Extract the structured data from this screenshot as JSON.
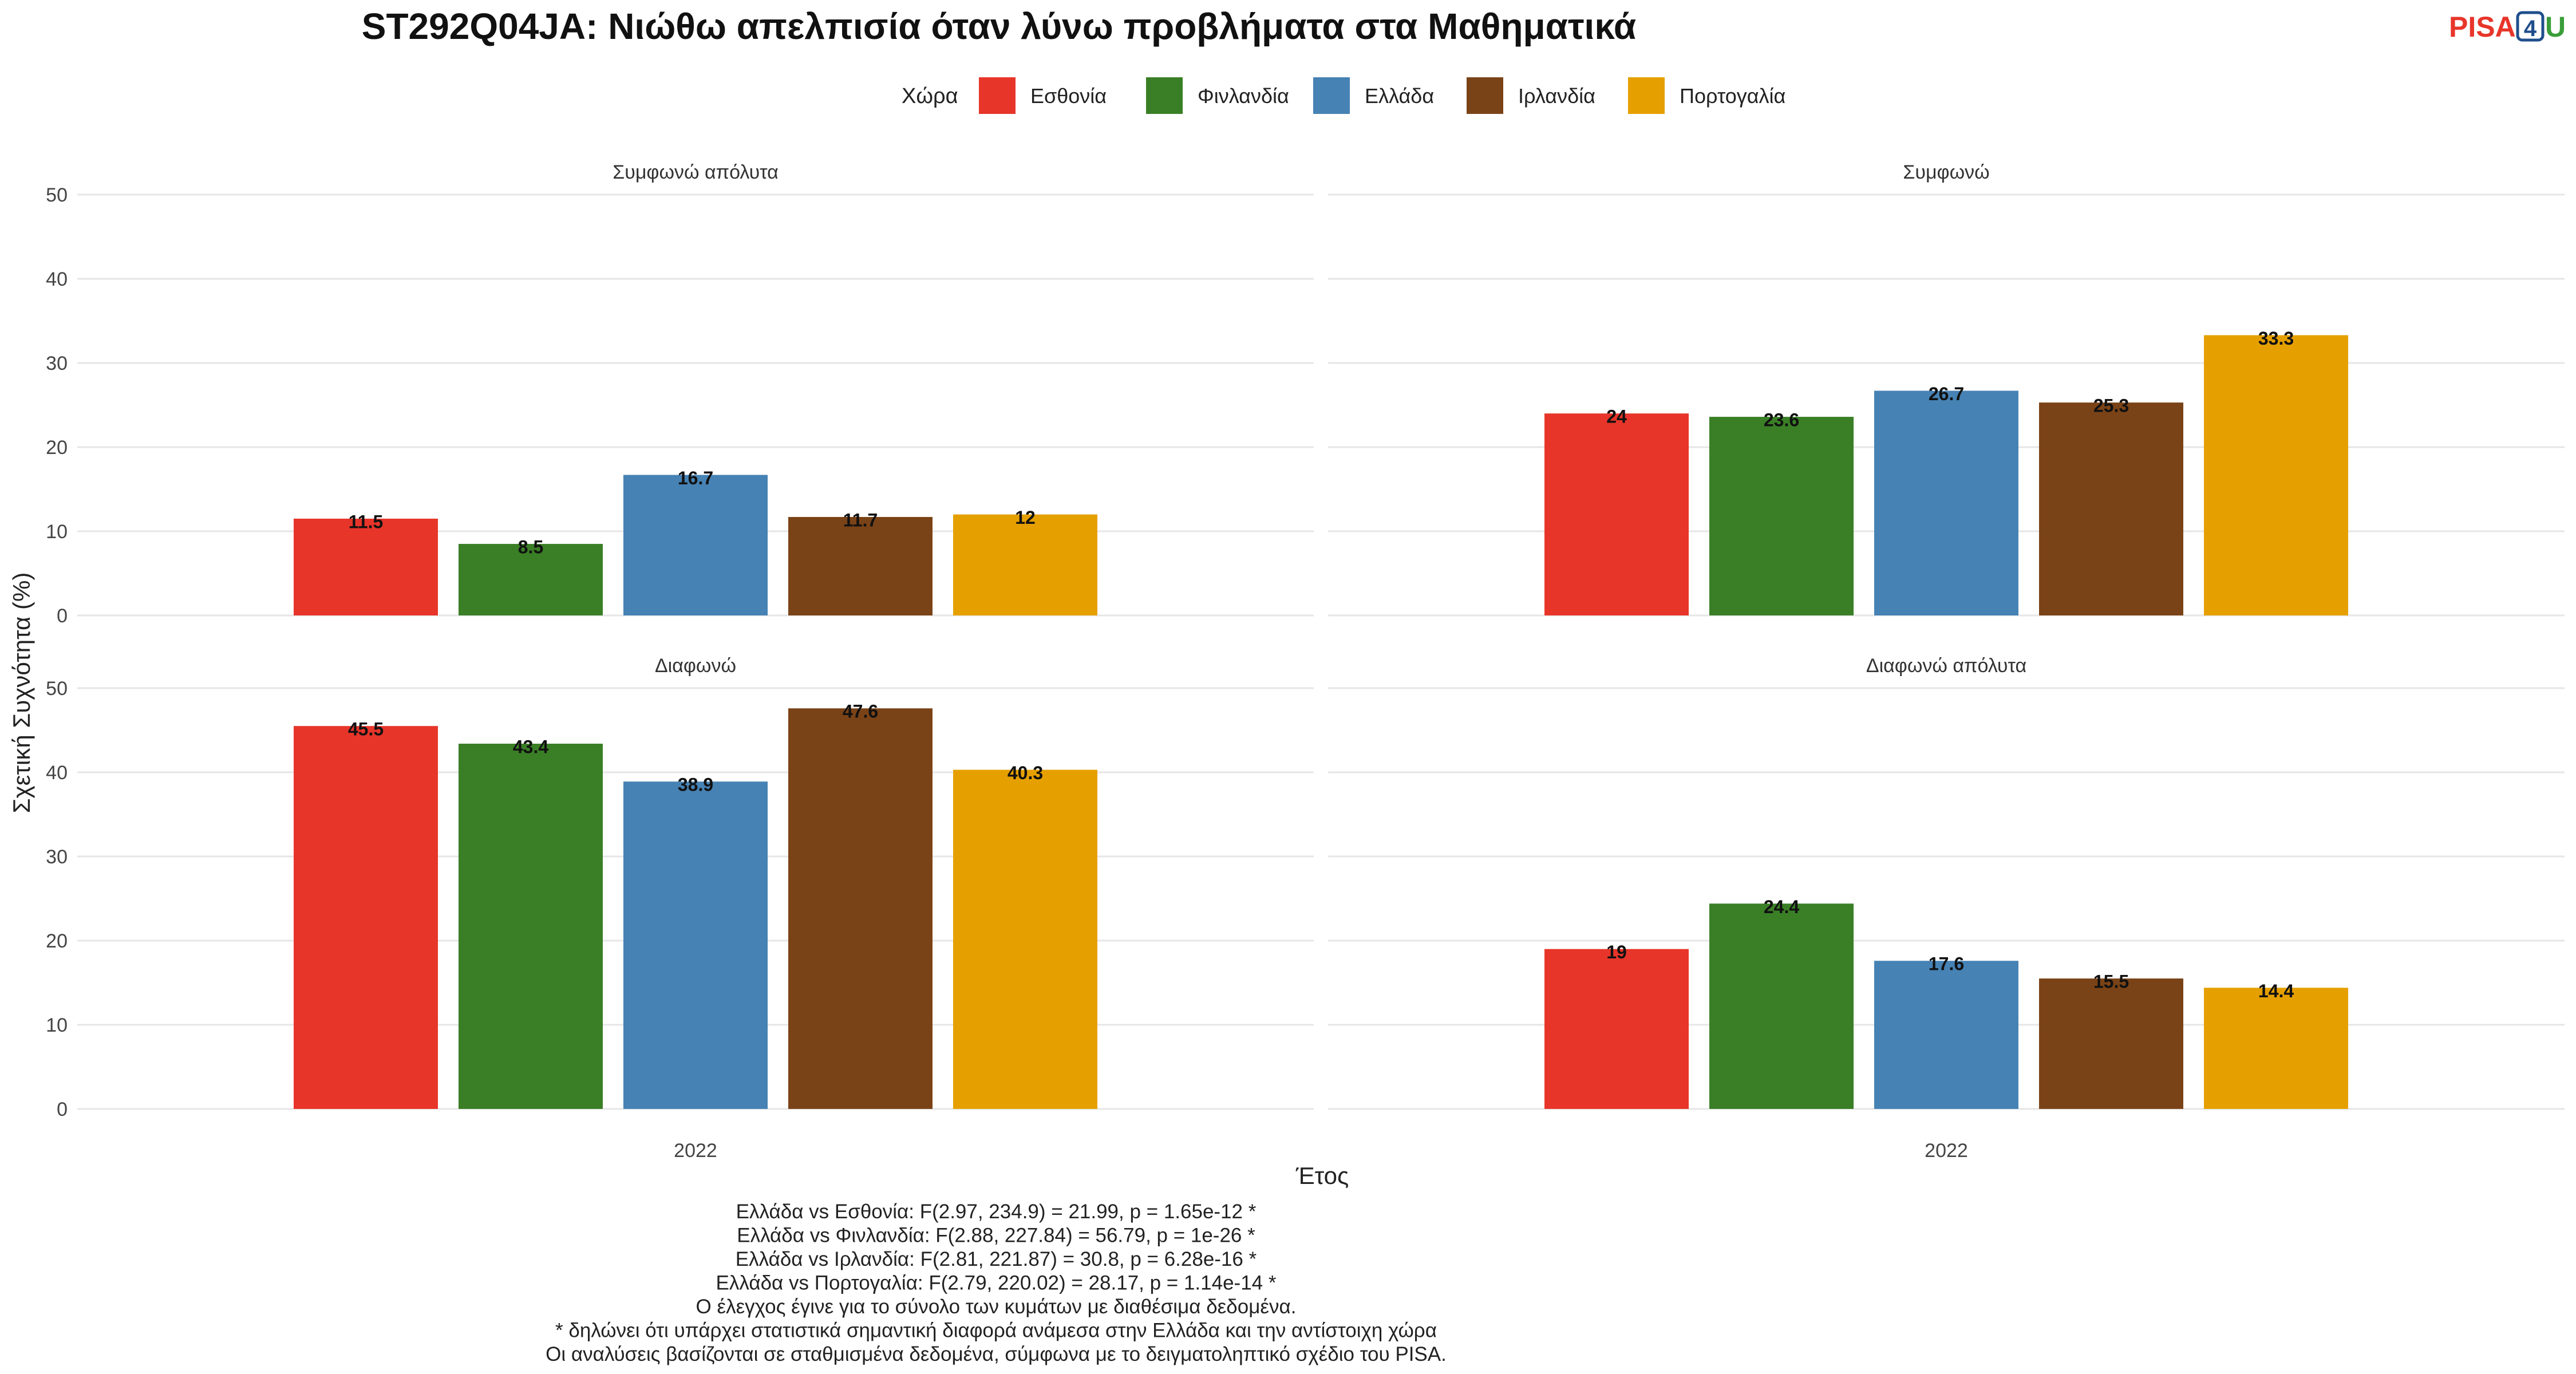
{
  "chart_data": {
    "type": "bar",
    "title": "ST292Q04JA: Νιώθω απελπισία όταν λύνω προβλήματα στα Μαθηματικά",
    "xlabel": "Έτος",
    "ylabel": "Σχετική Συχνότητα (%)",
    "ylim": [
      0,
      50
    ],
    "yticks": [
      "0",
      "10",
      "20",
      "30",
      "40",
      "50"
    ],
    "grid": true,
    "legend": {
      "title": "Χώρα",
      "placement": "top",
      "entries": [
        {
          "name": "Εσθονία",
          "color": "#E8352A"
        },
        {
          "name": "Φινλανδία",
          "color": "#3A7F26"
        },
        {
          "name": "Ελλάδα",
          "color": "#4682B4"
        },
        {
          "name": "Ιρλανδία",
          "color": "#7A4317"
        },
        {
          "name": "Πορτογαλία",
          "color": "#E5A000"
        }
      ]
    },
    "categories": [
      "2022"
    ],
    "panels": [
      {
        "label": "Συμφωνώ απόλυτα",
        "values": [
          11.5,
          8.5,
          16.7,
          11.7,
          12
        ],
        "value_labels": [
          "11.5",
          "8.5",
          "16.7",
          "11.7",
          "12"
        ]
      },
      {
        "label": "Συμφωνώ",
        "values": [
          24,
          23.6,
          26.7,
          25.3,
          33.3
        ],
        "value_labels": [
          "24",
          "23.6",
          "26.7",
          "25.3",
          "33.3"
        ]
      },
      {
        "label": "Διαφωνώ",
        "values": [
          45.5,
          43.4,
          38.9,
          47.6,
          40.3
        ],
        "value_labels": [
          "45.5",
          "43.4",
          "38.9",
          "47.6",
          "40.3"
        ]
      },
      {
        "label": "Διαφωνώ απόλυτα",
        "values": [
          19,
          24.4,
          17.6,
          15.5,
          14.4
        ],
        "value_labels": [
          "19",
          "24.4",
          "17.6",
          "15.5",
          "14.4"
        ]
      }
    ]
  },
  "logo": {
    "pisa": "PISA",
    "four": "4",
    "u": "U",
    "color_pisa": "#E8352A",
    "color_four": "#1F4E8C",
    "color_u": "#3A9D3A"
  },
  "notes": [
    "Ελλάδα vs Εσθονία: F(2.97, 234.9) = 21.99, p = 1.65e-12 *",
    "Ελλάδα vs Φινλανδία: F(2.88, 227.84) = 56.79, p = 1e-26 *",
    "Ελλάδα vs Ιρλανδία: F(2.81, 221.87) = 30.8, p = 6.28e-16 *",
    "Ελλάδα vs Πορτογαλία: F(2.79, 220.02) = 28.17, p = 1.14e-14 *",
    "Ο έλεγχος έγινε για το σύνολο των κυμάτων με διαθέσιμα δεδομένα.",
    "* δηλώνει ότι υπάρχει στατιστικά σημαντική διαφορά ανάμεσα στην Ελλάδα και την αντίστοιχη χώρα",
    "Οι αναλύσεις βασίζονται σε σταθμισμένα δεδομένα, σύμφωνα με το δειγματοληπτικό σχέδιο του PISA."
  ]
}
